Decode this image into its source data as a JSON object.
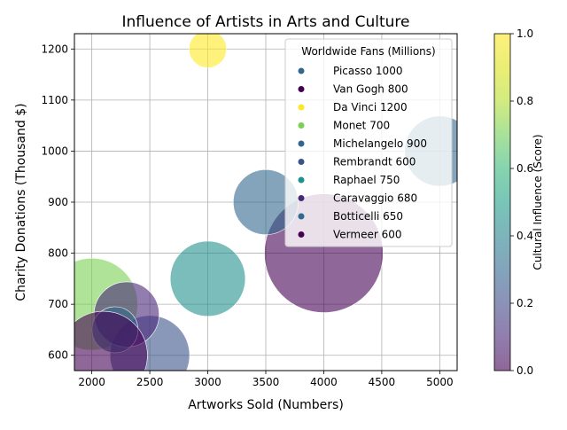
{
  "chart_data": {
    "type": "scatter",
    "title": "Influence of Artists in Arts and Culture",
    "xlabel": "Artworks Sold (Numbers)",
    "ylabel": "Charity Donations (Thousand $)",
    "xlim": [
      1850,
      5150
    ],
    "ylim": [
      570,
      1230
    ],
    "xticks": [
      2000,
      2500,
      3000,
      3500,
      4000,
      4500,
      5000
    ],
    "yticks": [
      600,
      700,
      800,
      900,
      1000,
      1100,
      1200
    ],
    "grid": true,
    "legend": {
      "title": "Worldwide Fans (Millions)",
      "placement": "top-right",
      "entries": [
        "Picasso 1000",
        "Van Gogh 800",
        "Da Vinci 1200",
        "Monet 700",
        "Michelangelo 900",
        "Rembrandt 600",
        "Raphael 750",
        "Caravaggio 680",
        "Botticelli 650",
        "Vermeer 600"
      ]
    },
    "colorbar": {
      "label": "Cultural Influence (Score)",
      "range": [
        0.0,
        1.0
      ],
      "ticks": [
        0.0,
        0.2,
        0.4,
        0.6,
        0.8,
        1.0
      ]
    },
    "points": [
      {
        "artist": "Picasso",
        "x": 5000,
        "y": 1000,
        "size": 35,
        "color": "#31688e"
      },
      {
        "artist": "Van Gogh",
        "x": 4000,
        "y": 800,
        "size": 100,
        "color": "#440154"
      },
      {
        "artist": "Da Vinci",
        "x": 3000,
        "y": 1200,
        "size": 10,
        "color": "#fde725"
      },
      {
        "artist": "Monet",
        "x": 2000,
        "y": 700,
        "size": 60,
        "color": "#7ad151"
      },
      {
        "artist": "Michelangelo",
        "x": 3500,
        "y": 900,
        "size": 30,
        "color": "#31688e"
      },
      {
        "artist": "Rembrandt",
        "x": 2500,
        "y": 600,
        "size": 45,
        "color": "#3b528b"
      },
      {
        "artist": "Raphael",
        "x": 3000,
        "y": 750,
        "size": 40,
        "color": "#21918c"
      },
      {
        "artist": "Caravaggio",
        "x": 2300,
        "y": 680,
        "size": 30,
        "color": "#482878"
      },
      {
        "artist": "Botticelli",
        "x": 2200,
        "y": 650,
        "size": 15,
        "color": "#31688e"
      },
      {
        "artist": "Vermeer",
        "x": 2100,
        "y": 600,
        "size": 55,
        "color": "#440154"
      }
    ]
  }
}
